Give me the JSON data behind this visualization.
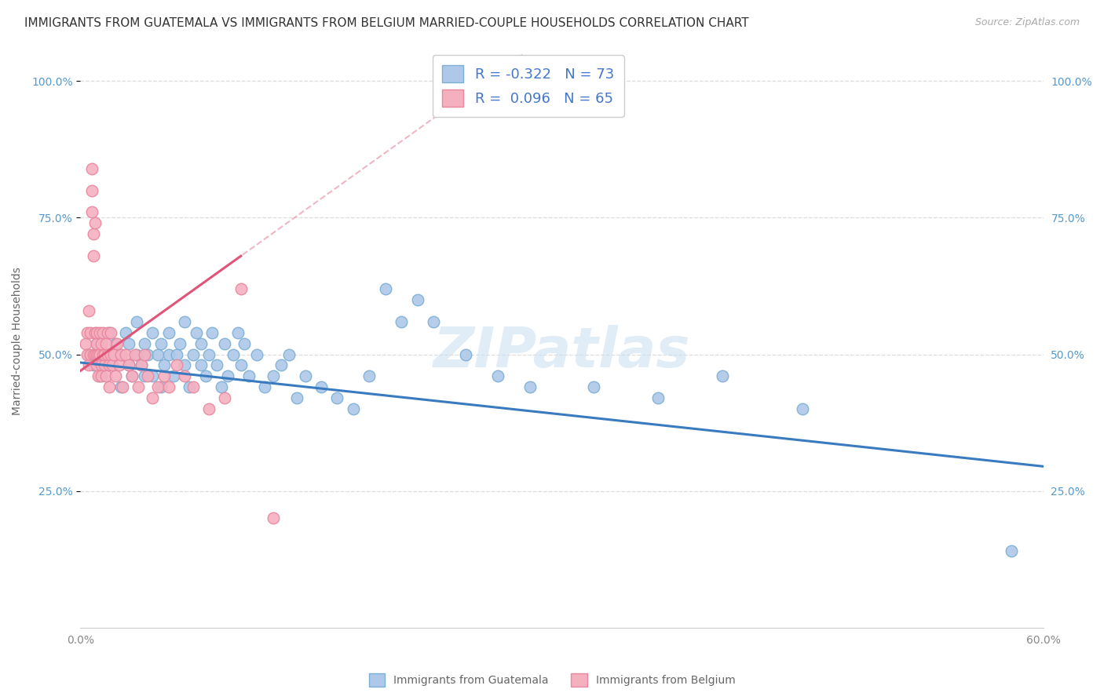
{
  "title": "IMMIGRANTS FROM GUATEMALA VS IMMIGRANTS FROM BELGIUM MARRIED-COUPLE HOUSEHOLDS CORRELATION CHART",
  "source": "Source: ZipAtlas.com",
  "ylabel": "Married-couple Households",
  "xlim": [
    0.0,
    0.6
  ],
  "ylim": [
    0.0,
    1.05
  ],
  "watermark": "ZIPatlas",
  "legend_r_guatemala": "-0.322",
  "legend_n_guatemala": "73",
  "legend_r_belgium": "0.096",
  "legend_n_belgium": "65",
  "blue_color": "#adc8e8",
  "pink_color": "#f5b0c0",
  "blue_line_color": "#3a7bbf",
  "pink_line_color": "#e05577",
  "pink_dash_color": "#e899aa",
  "blue_scatter_edge": "#7bafd4",
  "pink_scatter_edge": "#e8879e",
  "guatemala_x": [
    0.005,
    0.008,
    0.01,
    0.012,
    0.015,
    0.018,
    0.02,
    0.022,
    0.025,
    0.025,
    0.028,
    0.03,
    0.03,
    0.032,
    0.035,
    0.035,
    0.038,
    0.04,
    0.04,
    0.042,
    0.045,
    0.045,
    0.048,
    0.05,
    0.05,
    0.052,
    0.055,
    0.055,
    0.058,
    0.06,
    0.062,
    0.065,
    0.065,
    0.068,
    0.07,
    0.072,
    0.075,
    0.075,
    0.078,
    0.08,
    0.082,
    0.085,
    0.088,
    0.09,
    0.092,
    0.095,
    0.098,
    0.1,
    0.102,
    0.105,
    0.11,
    0.115,
    0.12,
    0.125,
    0.13,
    0.135,
    0.14,
    0.15,
    0.16,
    0.17,
    0.18,
    0.19,
    0.2,
    0.21,
    0.22,
    0.24,
    0.26,
    0.28,
    0.32,
    0.36,
    0.4,
    0.45,
    0.58
  ],
  "guatemala_y": [
    0.5,
    0.48,
    0.52,
    0.46,
    0.5,
    0.54,
    0.48,
    0.52,
    0.5,
    0.44,
    0.54,
    0.48,
    0.52,
    0.46,
    0.5,
    0.56,
    0.48,
    0.52,
    0.46,
    0.5,
    0.54,
    0.46,
    0.5,
    0.52,
    0.44,
    0.48,
    0.5,
    0.54,
    0.46,
    0.5,
    0.52,
    0.48,
    0.56,
    0.44,
    0.5,
    0.54,
    0.48,
    0.52,
    0.46,
    0.5,
    0.54,
    0.48,
    0.44,
    0.52,
    0.46,
    0.5,
    0.54,
    0.48,
    0.52,
    0.46,
    0.5,
    0.44,
    0.46,
    0.48,
    0.5,
    0.42,
    0.46,
    0.44,
    0.42,
    0.4,
    0.46,
    0.62,
    0.56,
    0.6,
    0.56,
    0.5,
    0.46,
    0.44,
    0.44,
    0.42,
    0.46,
    0.4,
    0.14
  ],
  "belgium_x": [
    0.003,
    0.004,
    0.004,
    0.005,
    0.005,
    0.006,
    0.006,
    0.007,
    0.007,
    0.007,
    0.008,
    0.008,
    0.008,
    0.009,
    0.009,
    0.009,
    0.01,
    0.01,
    0.01,
    0.01,
    0.011,
    0.011,
    0.012,
    0.012,
    0.013,
    0.013,
    0.013,
    0.014,
    0.014,
    0.015,
    0.015,
    0.016,
    0.016,
    0.017,
    0.017,
    0.018,
    0.018,
    0.019,
    0.019,
    0.02,
    0.021,
    0.022,
    0.023,
    0.024,
    0.025,
    0.026,
    0.028,
    0.03,
    0.032,
    0.034,
    0.036,
    0.038,
    0.04,
    0.042,
    0.045,
    0.048,
    0.052,
    0.055,
    0.06,
    0.065,
    0.07,
    0.08,
    0.09,
    0.1,
    0.12
  ],
  "belgium_y": [
    0.52,
    0.5,
    0.54,
    0.48,
    0.58,
    0.5,
    0.54,
    0.84,
    0.8,
    0.76,
    0.5,
    0.72,
    0.68,
    0.5,
    0.54,
    0.74,
    0.5,
    0.52,
    0.54,
    0.48,
    0.5,
    0.46,
    0.54,
    0.5,
    0.48,
    0.52,
    0.46,
    0.5,
    0.54,
    0.48,
    0.5,
    0.52,
    0.46,
    0.5,
    0.54,
    0.48,
    0.44,
    0.5,
    0.54,
    0.48,
    0.5,
    0.46,
    0.52,
    0.48,
    0.5,
    0.44,
    0.5,
    0.48,
    0.46,
    0.5,
    0.44,
    0.48,
    0.5,
    0.46,
    0.42,
    0.44,
    0.46,
    0.44,
    0.48,
    0.46,
    0.44,
    0.4,
    0.42,
    0.62,
    0.2
  ],
  "grid_color": "#dddddd",
  "background_color": "#ffffff",
  "title_fontsize": 11,
  "axis_label_fontsize": 10,
  "tick_fontsize": 10,
  "legend_fontsize": 13,
  "watermark_fontsize": 52,
  "watermark_color": "#cce0f0",
  "source_fontsize": 9
}
